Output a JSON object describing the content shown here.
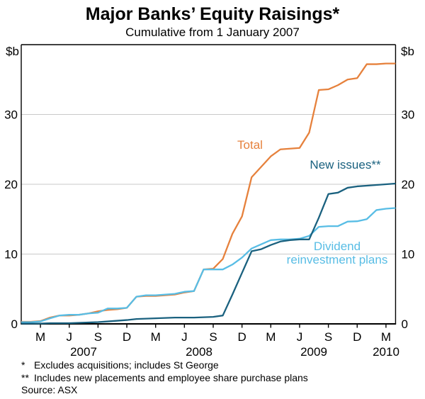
{
  "title": "Major Banks’ Equity Raisings*",
  "subtitle": "Cumulative from 1 January 2007",
  "y_axis": {
    "unit_label": "$b",
    "tick_values": [
      0,
      10,
      20,
      30
    ],
    "max": 40
  },
  "x_axis": {
    "month_tick_labels": [
      "M",
      "J",
      "S",
      "D",
      "M",
      "J",
      "S",
      "D",
      "M",
      "J",
      "S",
      "D",
      "M"
    ],
    "year_labels": [
      "2007",
      "2008",
      "2009",
      "2010"
    ]
  },
  "series_labels": {
    "total": "Total",
    "new_issues": "New issues**",
    "drp_line1": "Dividend",
    "drp_line2": "reinvestment plans"
  },
  "footnotes": [
    {
      "marker": "*",
      "text": "Excludes acquisitions; includes St George"
    },
    {
      "marker": "**",
      "text": "Includes new placements and employee share purchase plans"
    },
    {
      "marker": "",
      "text": "Source: ASX"
    }
  ],
  "colors": {
    "total": "#E6813C",
    "new_issues": "#1A617F",
    "drp": "#58BDE5",
    "grid": "#C9C9C9",
    "axis": "#000000"
  },
  "chart_data": {
    "type": "line",
    "title": "Major Banks’ Equity Raisings*",
    "subtitle": "Cumulative from 1 January 2007",
    "ylabel": "$b",
    "ylim": [
      0,
      40
    ],
    "grid_values": [
      10,
      20,
      30
    ],
    "legend_position": "inline-labels",
    "x": [
      "Jan 2007",
      "Feb 2007",
      "Mar 2007",
      "Apr 2007",
      "May 2007",
      "Jun 2007",
      "Jul 2007",
      "Aug 2007",
      "Sep 2007",
      "Oct 2007",
      "Nov 2007",
      "Dec 2007",
      "Jan 2008",
      "Feb 2008",
      "Mar 2008",
      "Apr 2008",
      "May 2008",
      "Jun 2008",
      "Jul 2008",
      "Aug 2008",
      "Sep 2008",
      "Oct 2008",
      "Nov 2008",
      "Dec 2008",
      "Jan 2009",
      "Feb 2009",
      "Mar 2009",
      "Apr 2009",
      "May 2009",
      "Jun 2009",
      "Jul 2009",
      "Aug 2009",
      "Sep 2009",
      "Oct 2009",
      "Nov 2009",
      "Dec 2009",
      "Jan 2010",
      "Feb 2010",
      "Mar 2010"
    ],
    "series": [
      {
        "name": "Total",
        "color_key": "total",
        "values": [
          0.3,
          0.4,
          0.9,
          1.2,
          1.2,
          1.3,
          1.5,
          1.8,
          2.0,
          2.1,
          2.3,
          3.9,
          4.0,
          4.0,
          4.1,
          4.2,
          4.5,
          4.7,
          7.8,
          7.9,
          9.3,
          12.9,
          15.4,
          21.0,
          22.5,
          24.0,
          25.0,
          25.1,
          25.2,
          27.4,
          33.5,
          33.6,
          34.2,
          35.0,
          35.2,
          37.2,
          37.2,
          37.3,
          37.3
        ]
      },
      {
        "name": "Dividend reinvestment plans",
        "color_key": "drp",
        "values": [
          0.25,
          0.35,
          0.8,
          1.2,
          1.3,
          1.3,
          1.5,
          1.6,
          2.2,
          2.2,
          2.3,
          3.9,
          4.1,
          4.1,
          4.2,
          4.3,
          4.6,
          4.7,
          7.8,
          7.8,
          7.8,
          8.5,
          9.5,
          10.8,
          11.4,
          12.0,
          12.1,
          12.1,
          12.2,
          12.6,
          13.9,
          14.0,
          14.0,
          14.65,
          14.7,
          15.0,
          16.3,
          16.5,
          16.6
        ]
      },
      {
        "name": "New issues**",
        "color_key": "new_issues",
        "values": [
          0.05,
          0.05,
          0.1,
          0.1,
          0.1,
          0.15,
          0.2,
          0.25,
          0.35,
          0.45,
          0.55,
          0.7,
          0.75,
          0.8,
          0.85,
          0.9,
          0.9,
          0.9,
          0.95,
          1.0,
          1.2,
          4.2,
          7.3,
          10.4,
          10.7,
          11.3,
          11.8,
          12.0,
          12.1,
          12.1,
          15.2,
          18.6,
          18.8,
          19.5,
          19.7,
          19.8,
          19.9,
          20.0,
          20.1
        ]
      }
    ]
  }
}
